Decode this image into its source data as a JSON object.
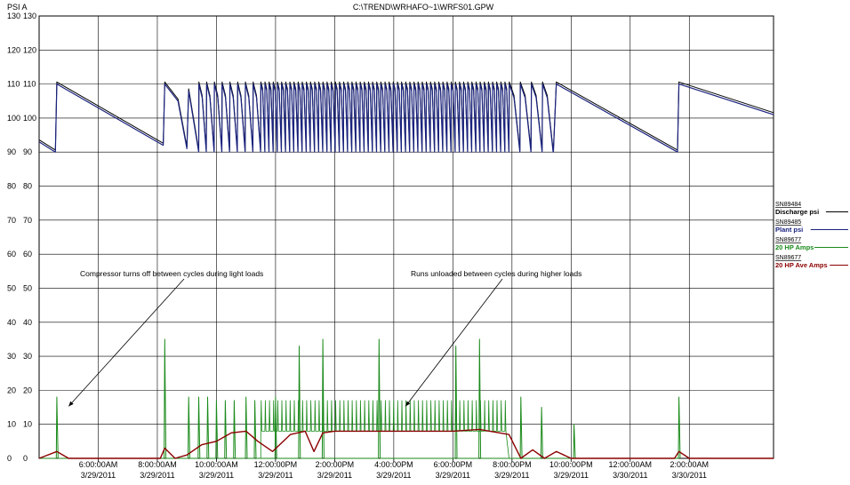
{
  "title": "C:\\TREND\\WRHAFO~1\\WRFS01.GPW",
  "y_unit_label": "PSI A",
  "chart_data": {
    "type": "line",
    "title": "C:\\TREND\\WRHAFO~1\\WRFS01.GPW",
    "ylabel": "PSI A",
    "ylim": [
      0,
      130
    ],
    "y_ticks": [
      0,
      10,
      20,
      30,
      40,
      50,
      60,
      70,
      80,
      90,
      100,
      110,
      120,
      130
    ],
    "x_range_hours": [
      4.0,
      28.85
    ],
    "x_ticks": [
      {
        "time": "6:00:00AM",
        "date": "3/29/2011"
      },
      {
        "time": "8:00:00AM",
        "date": "3/29/2011"
      },
      {
        "time": "10:00:00AM",
        "date": "3/29/2011"
      },
      {
        "time": "12:00:00PM",
        "date": "3/29/2011"
      },
      {
        "time": "2:00:00PM",
        "date": "3/29/2011"
      },
      {
        "time": "4:00:00PM",
        "date": "3/29/2011"
      },
      {
        "time": "6:00:00PM",
        "date": "3/29/2011"
      },
      {
        "time": "8:00:00PM",
        "date": "3/29/2011"
      },
      {
        "time": "10:00:00PM",
        "date": "3/29/2011"
      },
      {
        "time": "12:00:00AM",
        "date": "3/30/2011"
      },
      {
        "time": "2:00:00AM",
        "date": "3/30/2011"
      }
    ],
    "grid": true,
    "legend_position": "right",
    "legend": [
      {
        "id": "SN89484",
        "name": "Discharge psi",
        "color": "#000000"
      },
      {
        "id": "SN89485",
        "name": "Plant psi",
        "color": "#1a237e"
      },
      {
        "id": "SN89677",
        "name": "20 HP Amps",
        "color": "#1a8a1a"
      },
      {
        "id": "SN89677",
        "name": "20 HP Ave Amps",
        "color": "#8b0000"
      }
    ],
    "pressure_sawtooth_hours": [
      [
        4.0,
        93
      ],
      [
        4.55,
        90
      ],
      [
        4.6,
        110
      ],
      [
        8.2,
        92
      ],
      [
        8.25,
        110
      ],
      [
        8.7,
        105
      ],
      [
        9.0,
        91
      ],
      [
        9.06,
        108
      ],
      [
        9.4,
        90
      ]
    ],
    "pressure_light_load_cycles": {
      "start_hour": 9.4,
      "end_hour": 11.5,
      "min_psi": 90,
      "max_psi": 110,
      "count": 8
    },
    "pressure_dense_cycles": {
      "start_hour": 11.5,
      "end_hour": 19.9,
      "min_psi": 90,
      "max_psi": 110,
      "count": 60
    },
    "pressure_evening_cycles": {
      "start_hour": 19.9,
      "end_hour": 21.4,
      "min_psi": 90,
      "max_psi": 110,
      "count": 4
    },
    "pressure_tail": [
      [
        21.4,
        90
      ],
      [
        21.5,
        110
      ],
      [
        25.6,
        90
      ],
      [
        25.65,
        110
      ],
      [
        28.85,
        101
      ]
    ],
    "amps_peak_hours": [
      [
        4.6,
        18
      ],
      [
        8.25,
        35
      ],
      [
        9.06,
        18
      ],
      [
        9.4,
        18
      ],
      [
        9.7,
        18
      ],
      [
        10.0,
        17
      ],
      [
        10.3,
        17
      ],
      [
        10.6,
        17
      ],
      [
        11.0,
        18
      ],
      [
        11.3,
        17
      ],
      [
        12.8,
        33
      ],
      [
        12.0,
        18
      ],
      [
        13.6,
        35
      ],
      [
        15.5,
        35
      ],
      [
        18.1,
        33
      ],
      [
        18.9,
        35
      ],
      [
        20.3,
        18
      ],
      [
        21.0,
        15
      ],
      [
        22.1,
        10
      ],
      [
        25.65,
        18
      ]
    ],
    "amps_loaded_level": 17,
    "amps_unloaded_level": 8,
    "ave_amps": [
      [
        4.0,
        0
      ],
      [
        4.6,
        2
      ],
      [
        5.0,
        0
      ],
      [
        8.1,
        0
      ],
      [
        8.25,
        3
      ],
      [
        8.6,
        0
      ],
      [
        9.0,
        1
      ],
      [
        9.5,
        4
      ],
      [
        10.0,
        5
      ],
      [
        10.5,
        7.5
      ],
      [
        11.0,
        8
      ],
      [
        11.4,
        5
      ],
      [
        11.9,
        2
      ],
      [
        12.5,
        7
      ],
      [
        13.0,
        8
      ],
      [
        13.3,
        2
      ],
      [
        13.6,
        7.5
      ],
      [
        14.0,
        8
      ],
      [
        18.0,
        8
      ],
      [
        18.9,
        8.5
      ],
      [
        19.9,
        7
      ],
      [
        20.3,
        0
      ],
      [
        20.7,
        2.5
      ],
      [
        21.1,
        0
      ],
      [
        21.5,
        2
      ],
      [
        22.0,
        0
      ],
      [
        25.5,
        0
      ],
      [
        25.65,
        2
      ],
      [
        26.0,
        0
      ],
      [
        28.85,
        0
      ]
    ],
    "annotations": [
      {
        "text": "Compressor turns off between cycles during light loads",
        "points_to_hour": 5.0,
        "points_to_value": 20
      },
      {
        "text": "Runs unloaded between cycles during higher loads",
        "points_to_hour": 16.4,
        "points_to_value": 20
      }
    ]
  }
}
